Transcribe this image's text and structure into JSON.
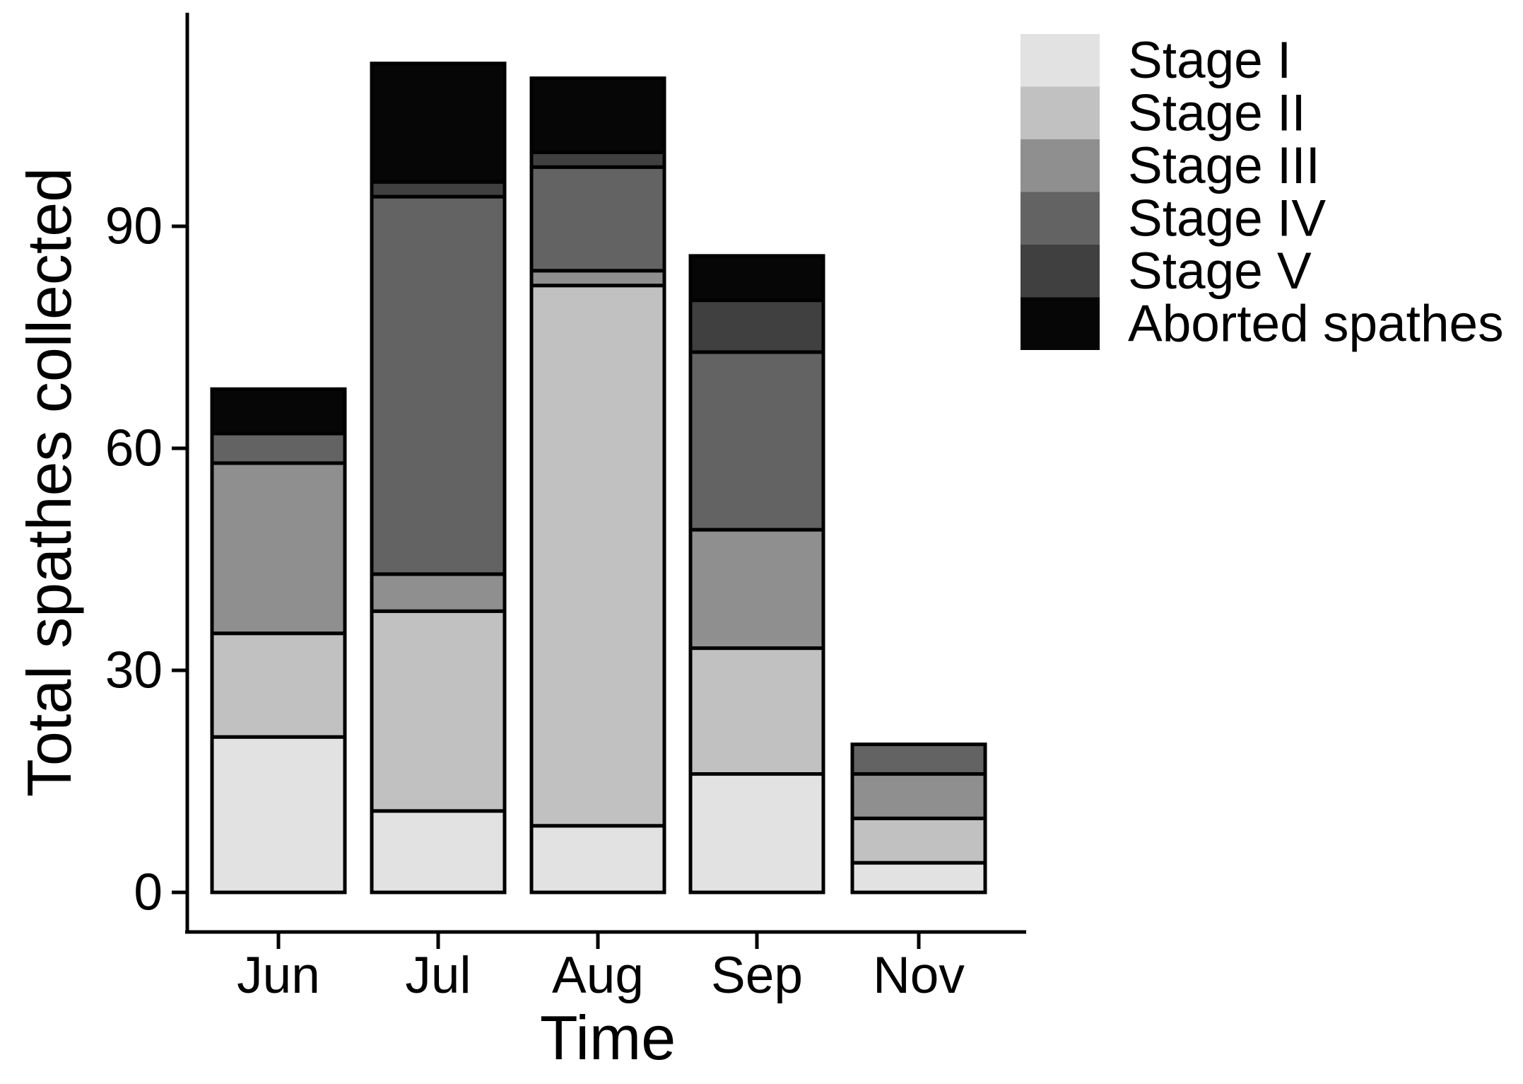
{
  "chart_data": {
    "type": "bar",
    "stacked": true,
    "title": "",
    "xlabel": "Time",
    "ylabel": "Total spathes collected",
    "categories": [
      "Jun",
      "Jul",
      "Aug",
      "Sep",
      "Nov"
    ],
    "series": [
      {
        "name": "Stage I",
        "color": "#e2e2e2",
        "values": [
          21,
          11,
          9,
          16,
          4
        ]
      },
      {
        "name": "Stage II",
        "color": "#c1c1c1",
        "values": [
          14,
          27,
          73,
          17,
          6
        ]
      },
      {
        "name": "Stage III",
        "color": "#8f8f8f",
        "values": [
          23,
          5,
          2,
          16,
          6
        ]
      },
      {
        "name": "Stage IV",
        "color": "#636363",
        "values": [
          4,
          51,
          14,
          24,
          4
        ]
      },
      {
        "name": "Stage V",
        "color": "#404040",
        "values": [
          0,
          2,
          2,
          7,
          0
        ]
      },
      {
        "name": "Aborted spathes",
        "color": "#060606",
        "values": [
          6,
          16,
          10,
          6,
          0
        ]
      }
    ],
    "totals": [
      68,
      112,
      110,
      86,
      20
    ],
    "y_ticks": [
      0,
      30,
      60,
      90
    ],
    "ylim": [
      0,
      118
    ],
    "grid": false,
    "legend_position": "top-right",
    "stack_order_bottom_to_top": [
      "Stage I",
      "Stage II",
      "Stage III",
      "Stage IV",
      "Stage V",
      "Aborted spathes"
    ],
    "bar_border_color": "#000000",
    "axis_color": "#000000",
    "background_color": "#ffffff"
  }
}
